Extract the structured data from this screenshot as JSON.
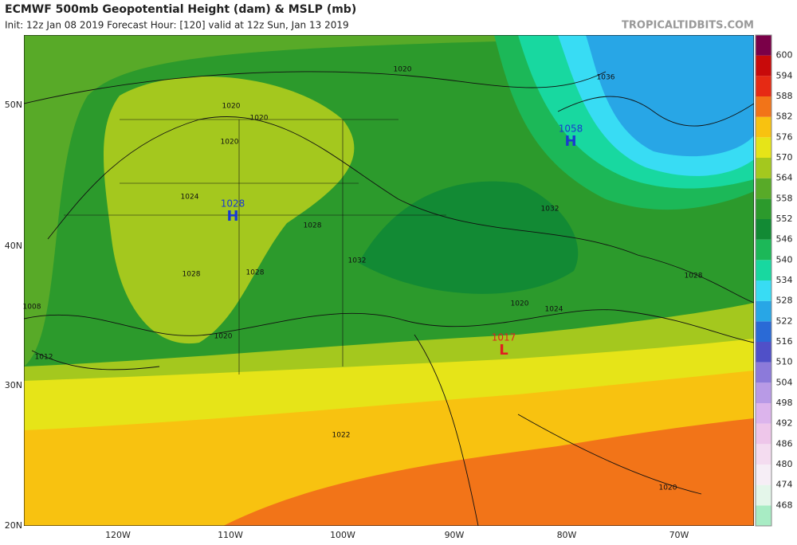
{
  "header": {
    "title": "ECMWF 500mb Geopotential Height (dam) & MSLP (mb)",
    "subtitle": "Init: 12z Jan 08 2019   Forecast Hour: [120]   valid at 12z Sun, Jan 13 2019",
    "source": "TROPICALTIDBITS.COM"
  },
  "map": {
    "lat_labels": [
      "50N",
      "40N",
      "30N",
      "20N"
    ],
    "lon_labels": [
      "120W",
      "110W",
      "100W",
      "90W",
      "80W",
      "70W"
    ],
    "pressure_centers": [
      {
        "symbol": "H",
        "value": "1028"
      },
      {
        "symbol": "H",
        "value": "1058"
      },
      {
        "symbol": "L",
        "value": "1017"
      }
    ],
    "isobar_labels": [
      "1020",
      "1020",
      "1020",
      "1020",
      "1024",
      "1028",
      "1028",
      "1032",
      "1036",
      "1032",
      "1028",
      "1024",
      "1020",
      "1008",
      "1012",
      "1022",
      "1020",
      "1020",
      "1028"
    ]
  },
  "colorbar": {
    "levels": [
      468,
      474,
      480,
      486,
      492,
      498,
      504,
      510,
      516,
      522,
      528,
      534,
      540,
      546,
      552,
      558,
      564,
      570,
      576,
      582,
      588,
      594,
      600
    ],
    "colors": [
      "#a8ecc4",
      "#e4f6ea",
      "#f6eef6",
      "#f4dcf0",
      "#eec6ea",
      "#dcb4ec",
      "#b89ae6",
      "#8c7ada",
      "#5050c8",
      "#2a6ad6",
      "#28a6e6",
      "#38dcf4",
      "#18d8a0",
      "#1cb858",
      "#128a34",
      "#2c9a2c",
      "#58aa28",
      "#a4c81e",
      "#e6e418",
      "#f8c210",
      "#f27418",
      "#e62a14",
      "#c80a0a",
      "#7a0048"
    ]
  }
}
